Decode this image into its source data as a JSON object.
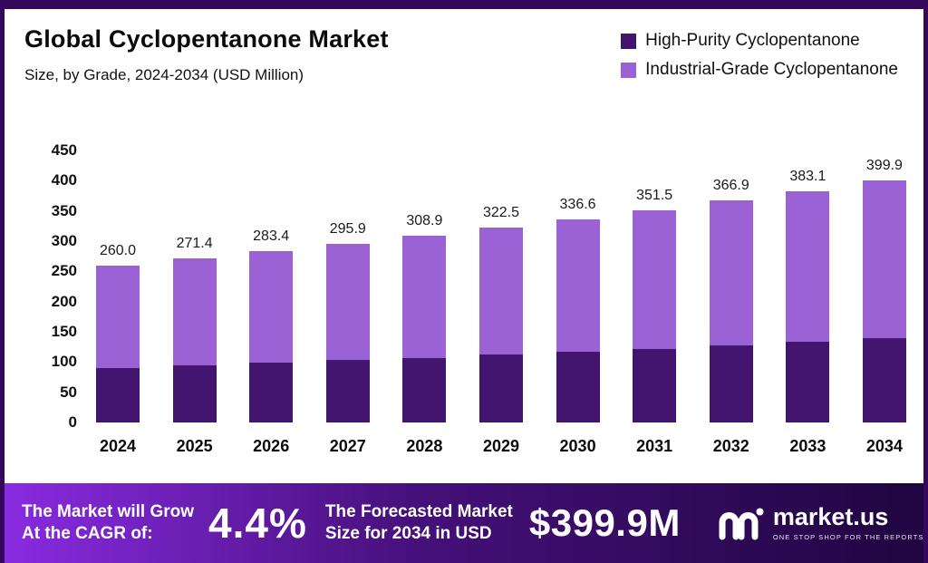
{
  "header": {
    "title": "Global Cyclopentanone Market",
    "subtitle": "Size, by Grade, 2024-2034 (USD Million)"
  },
  "chart_data": {
    "type": "bar",
    "stacked": true,
    "title": "Global Cyclopentanone Market",
    "subtitle": "Size, by Grade, 2024-2034 (USD Million)",
    "categories": [
      "2024",
      "2025",
      "2026",
      "2027",
      "2028",
      "2029",
      "2030",
      "2031",
      "2032",
      "2033",
      "2034"
    ],
    "series": [
      {
        "name": "High-Purity Cyclopentanone",
        "color": "#44156e",
        "values": [
          90,
          95,
          99,
          103,
          107,
          112,
          117,
          122,
          128,
          134,
          140
        ]
      },
      {
        "name": "Industrial-Grade Cyclopentanone",
        "color": "#9a62d4",
        "values": [
          170,
          176.4,
          184.4,
          192.9,
          201.9,
          210.5,
          219.6,
          229.5,
          238.9,
          249.1,
          259.9
        ]
      }
    ],
    "totals": [
      "260.0",
      "271.4",
      "283.4",
      "295.9",
      "308.9",
      "322.5",
      "336.6",
      "351.5",
      "366.9",
      "383.1",
      "399.9"
    ],
    "xlabel": "",
    "ylabel": "",
    "ylim": [
      0,
      450
    ],
    "ytick_step": 50,
    "grid": false,
    "legend_position": "top-right"
  },
  "banner": {
    "growth_label_line1": "The Market will Grow",
    "growth_label_line2": "At the CAGR of:",
    "cagr_value": "4.4%",
    "forecast_label_line1": "The Forecasted Market",
    "forecast_label_line2": "Size for 2034 in USD",
    "forecast_value": "$399.9M",
    "brand_name": "market.us",
    "brand_tagline": "ONE STOP SHOP FOR THE REPORTS",
    "gradient_start": "#8a2be2",
    "gradient_mid": "#45107a",
    "gradient_end": "#1f0540"
  },
  "frame_color": "#35085c"
}
